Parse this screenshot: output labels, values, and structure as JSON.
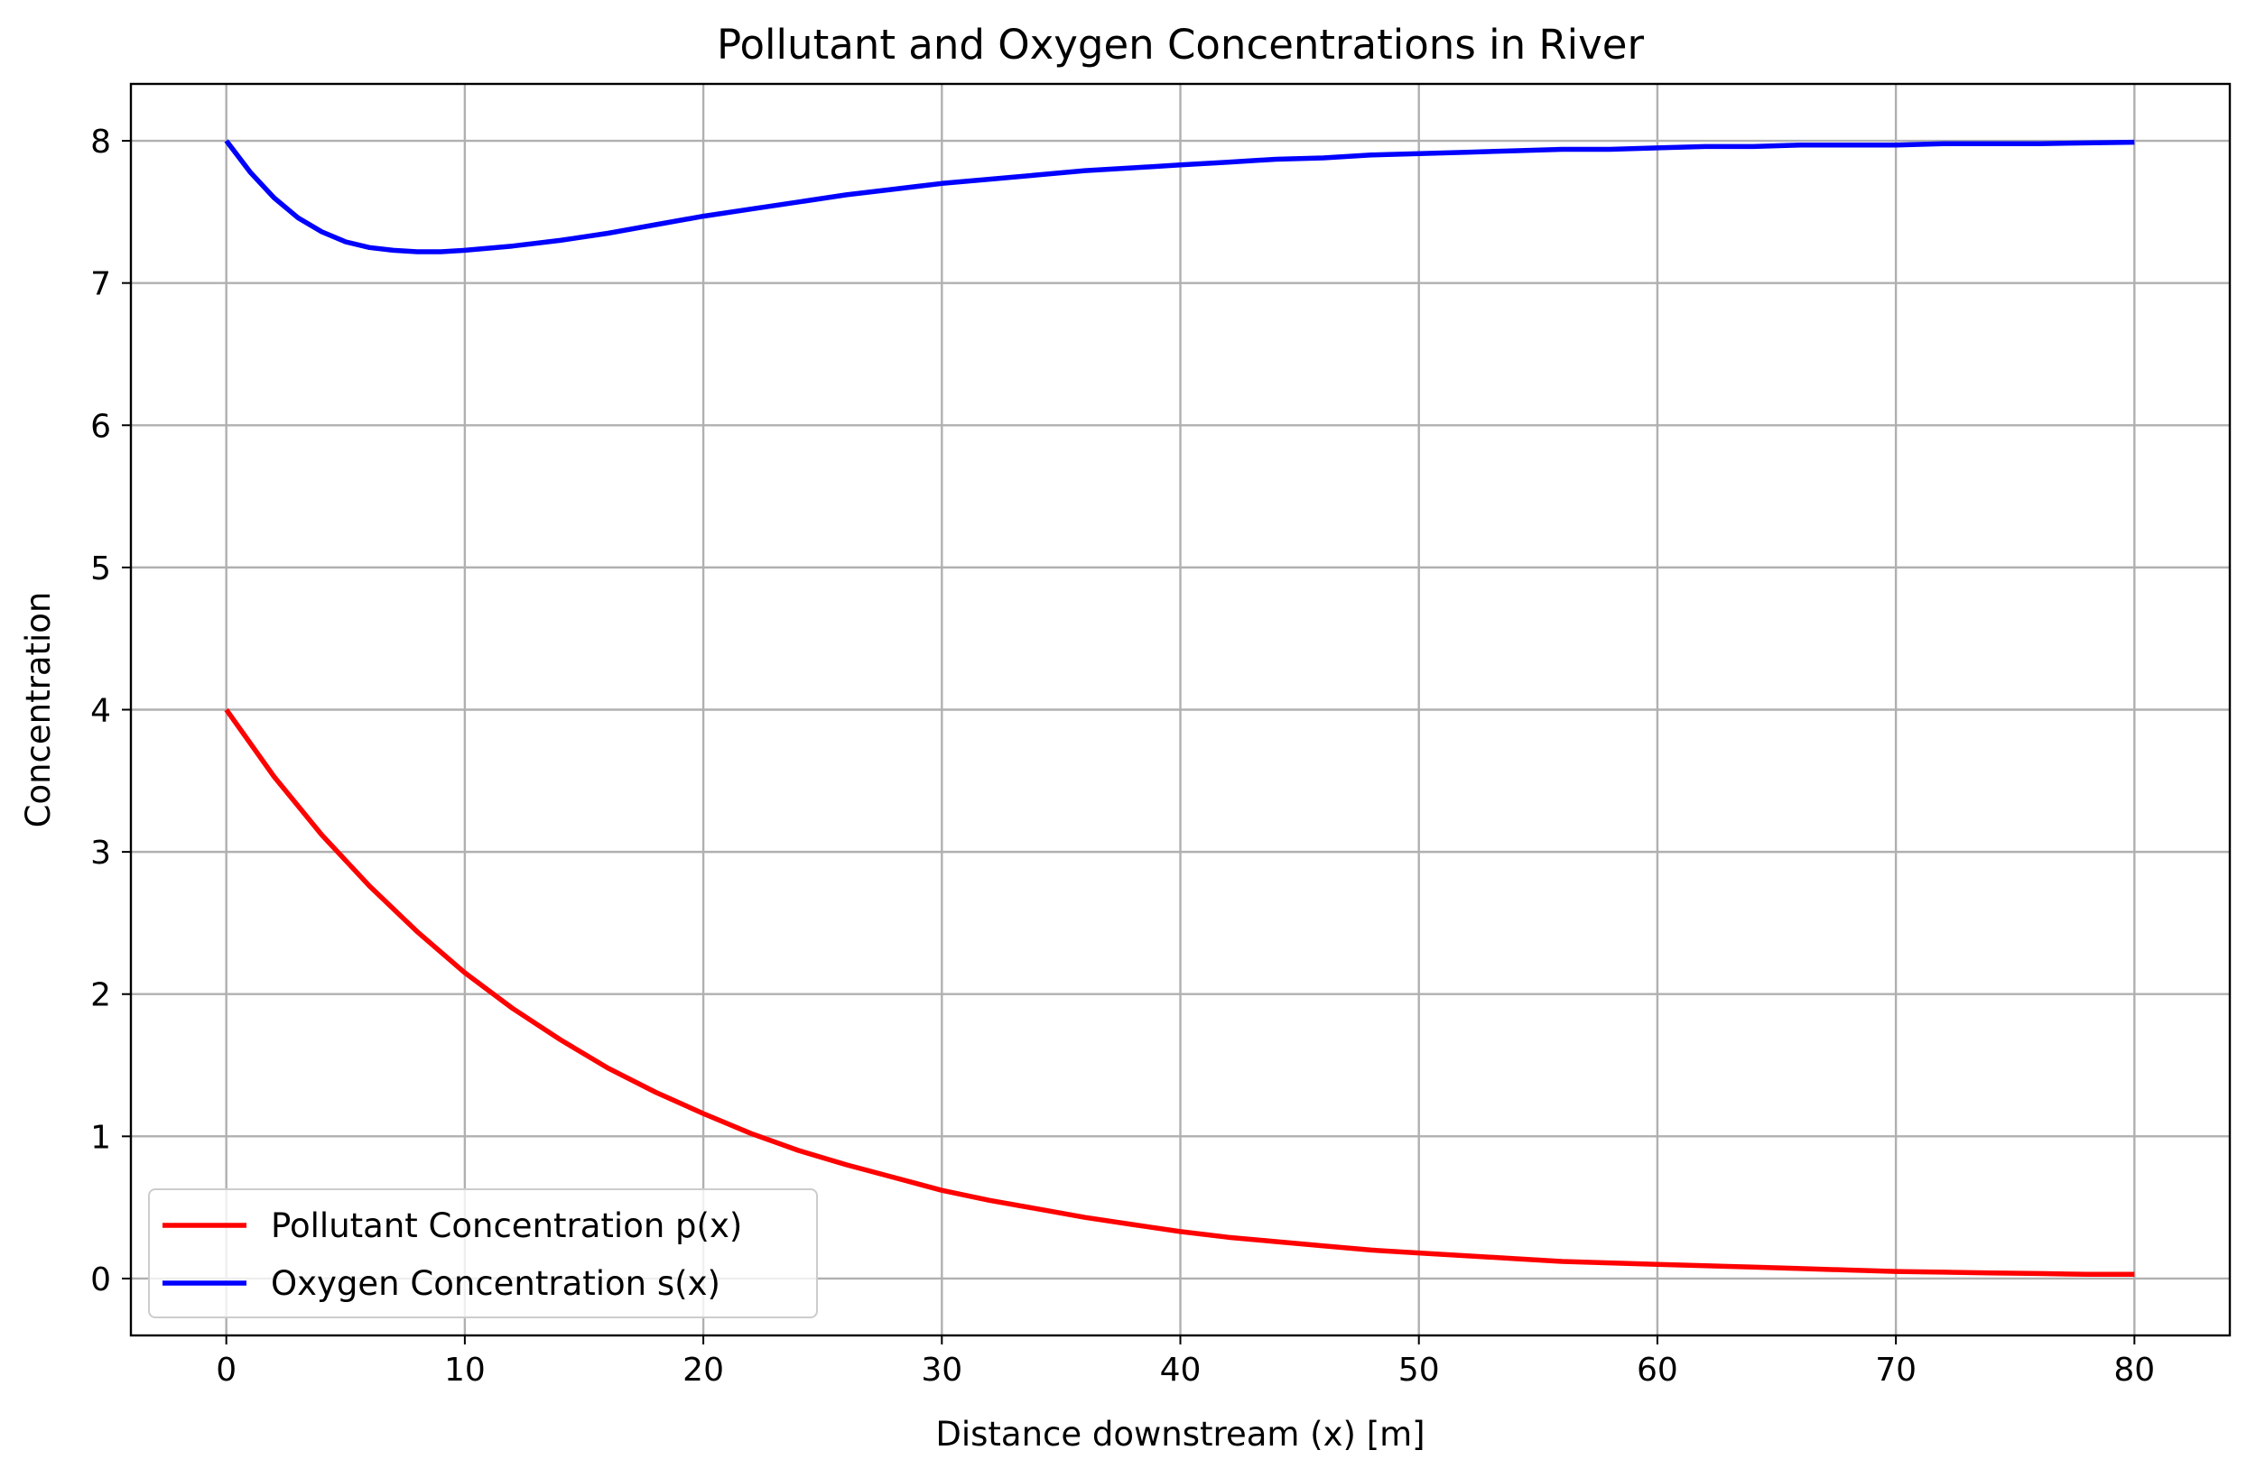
{
  "chart_data": {
    "type": "line",
    "title": "Pollutant and Oxygen Concentrations in River",
    "xlabel": "Distance downstream (x) [m]",
    "ylabel": "Concentration",
    "xlim": [
      -4,
      84
    ],
    "ylim": [
      -0.4,
      8.4
    ],
    "xticks": [
      0,
      10,
      20,
      30,
      40,
      50,
      60,
      70,
      80
    ],
    "yticks": [
      0,
      1,
      2,
      3,
      4,
      5,
      6,
      7,
      8
    ],
    "xtick_labels": [
      "0",
      "10",
      "20",
      "30",
      "40",
      "50",
      "60",
      "70",
      "80"
    ],
    "ytick_labels": [
      "0",
      "1",
      "2",
      "3",
      "4",
      "5",
      "6",
      "7",
      "8"
    ],
    "grid": true,
    "legend_position": "lower-left",
    "series": [
      {
        "name": "Pollutant Concentration p(x)",
        "color": "#ff0000",
        "x": [
          0,
          2,
          4,
          6,
          8,
          10,
          12,
          14,
          16,
          18,
          20,
          22,
          24,
          26,
          28,
          30,
          32,
          34,
          36,
          38,
          40,
          42,
          44,
          46,
          48,
          50,
          52,
          54,
          56,
          58,
          60,
          62,
          64,
          66,
          68,
          70,
          72,
          74,
          76,
          78,
          80
        ],
        "y": [
          4.0,
          3.53,
          3.12,
          2.76,
          2.44,
          2.15,
          1.9,
          1.68,
          1.48,
          1.31,
          1.16,
          1.02,
          0.9,
          0.8,
          0.71,
          0.62,
          0.55,
          0.49,
          0.43,
          0.38,
          0.33,
          0.29,
          0.26,
          0.23,
          0.2,
          0.18,
          0.16,
          0.14,
          0.12,
          0.11,
          0.1,
          0.09,
          0.08,
          0.07,
          0.06,
          0.05,
          0.045,
          0.04,
          0.035,
          0.03,
          0.03
        ]
      },
      {
        "name": "Oxygen Concentration s(x)",
        "color": "#0000ff",
        "x": [
          0,
          1,
          2,
          3,
          4,
          5,
          6,
          7,
          8,
          9,
          10,
          12,
          14,
          16,
          18,
          20,
          22,
          24,
          26,
          28,
          30,
          32,
          34,
          36,
          38,
          40,
          42,
          44,
          46,
          48,
          50,
          52,
          54,
          56,
          58,
          60,
          62,
          64,
          66,
          68,
          70,
          72,
          74,
          76,
          78,
          80
        ],
        "y": [
          8.0,
          7.78,
          7.6,
          7.46,
          7.36,
          7.29,
          7.25,
          7.23,
          7.22,
          7.22,
          7.23,
          7.26,
          7.3,
          7.35,
          7.41,
          7.47,
          7.52,
          7.57,
          7.62,
          7.66,
          7.7,
          7.73,
          7.76,
          7.79,
          7.81,
          7.83,
          7.85,
          7.87,
          7.88,
          7.9,
          7.91,
          7.92,
          7.93,
          7.94,
          7.94,
          7.95,
          7.96,
          7.96,
          7.97,
          7.97,
          7.97,
          7.98,
          7.98,
          7.98,
          7.985,
          7.99
        ]
      }
    ]
  }
}
